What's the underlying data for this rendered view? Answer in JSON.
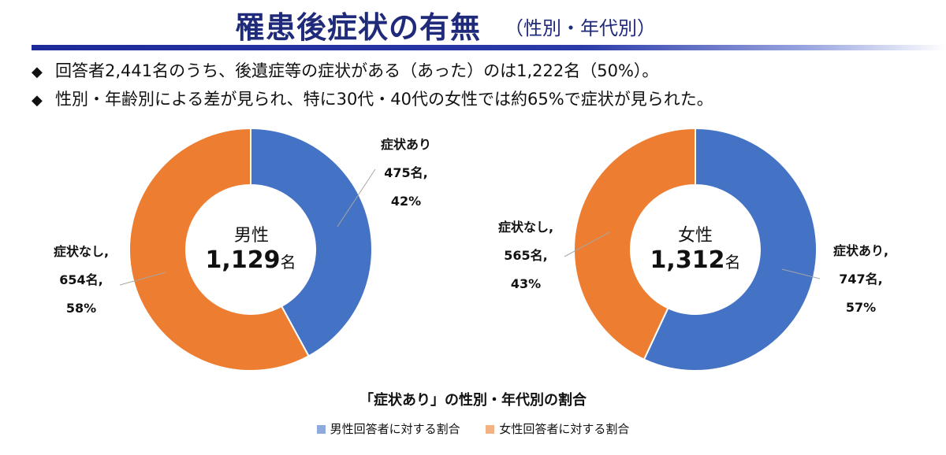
{
  "header": {
    "title": "罹患後症状の有無",
    "subtitle": "（性別・年代別）"
  },
  "bullets": [
    "回答者2,441名のうち、後遺症等の症状がある（あった）のは1,222名（50%）。",
    "性別・年齢別による差が見られ、特に30代・40代の女性では約65%で症状が見られた。"
  ],
  "bullet_mark": "◆",
  "colors": {
    "blue": "#4472c4",
    "orange": "#ed7d31",
    "legend_blue": "#8faadc",
    "legend_orange": "#f4b183",
    "title_navy": "#1f2a7a"
  },
  "chart_data": [
    {
      "type": "pie",
      "center_label": "男性",
      "center_total": "1,129",
      "center_unit": "名",
      "total": 1129,
      "slices": [
        {
          "label": "症状あり",
          "count_text": "475名,",
          "percent_text": "42%",
          "value": 475
        },
        {
          "label": "症状なし,",
          "count_text": "654名,",
          "percent_text": "58%",
          "value": 654
        }
      ]
    },
    {
      "type": "pie",
      "center_label": "女性",
      "center_total": "1,312",
      "center_unit": "名",
      "total": 1312,
      "slices": [
        {
          "label": "症状あり,",
          "count_text": "747名,",
          "percent_text": "57%",
          "value": 747
        },
        {
          "label": "症状なし,",
          "count_text": "565名,",
          "percent_text": "43%",
          "value": 565
        }
      ]
    }
  ],
  "bottom": {
    "title": "「症状あり」の性別・年代別の割合",
    "legend": [
      {
        "label": "男性回答者に対する割合",
        "color": "#8faadc"
      },
      {
        "label": "女性回答者に対する割合",
        "color": "#f4b183"
      }
    ]
  }
}
